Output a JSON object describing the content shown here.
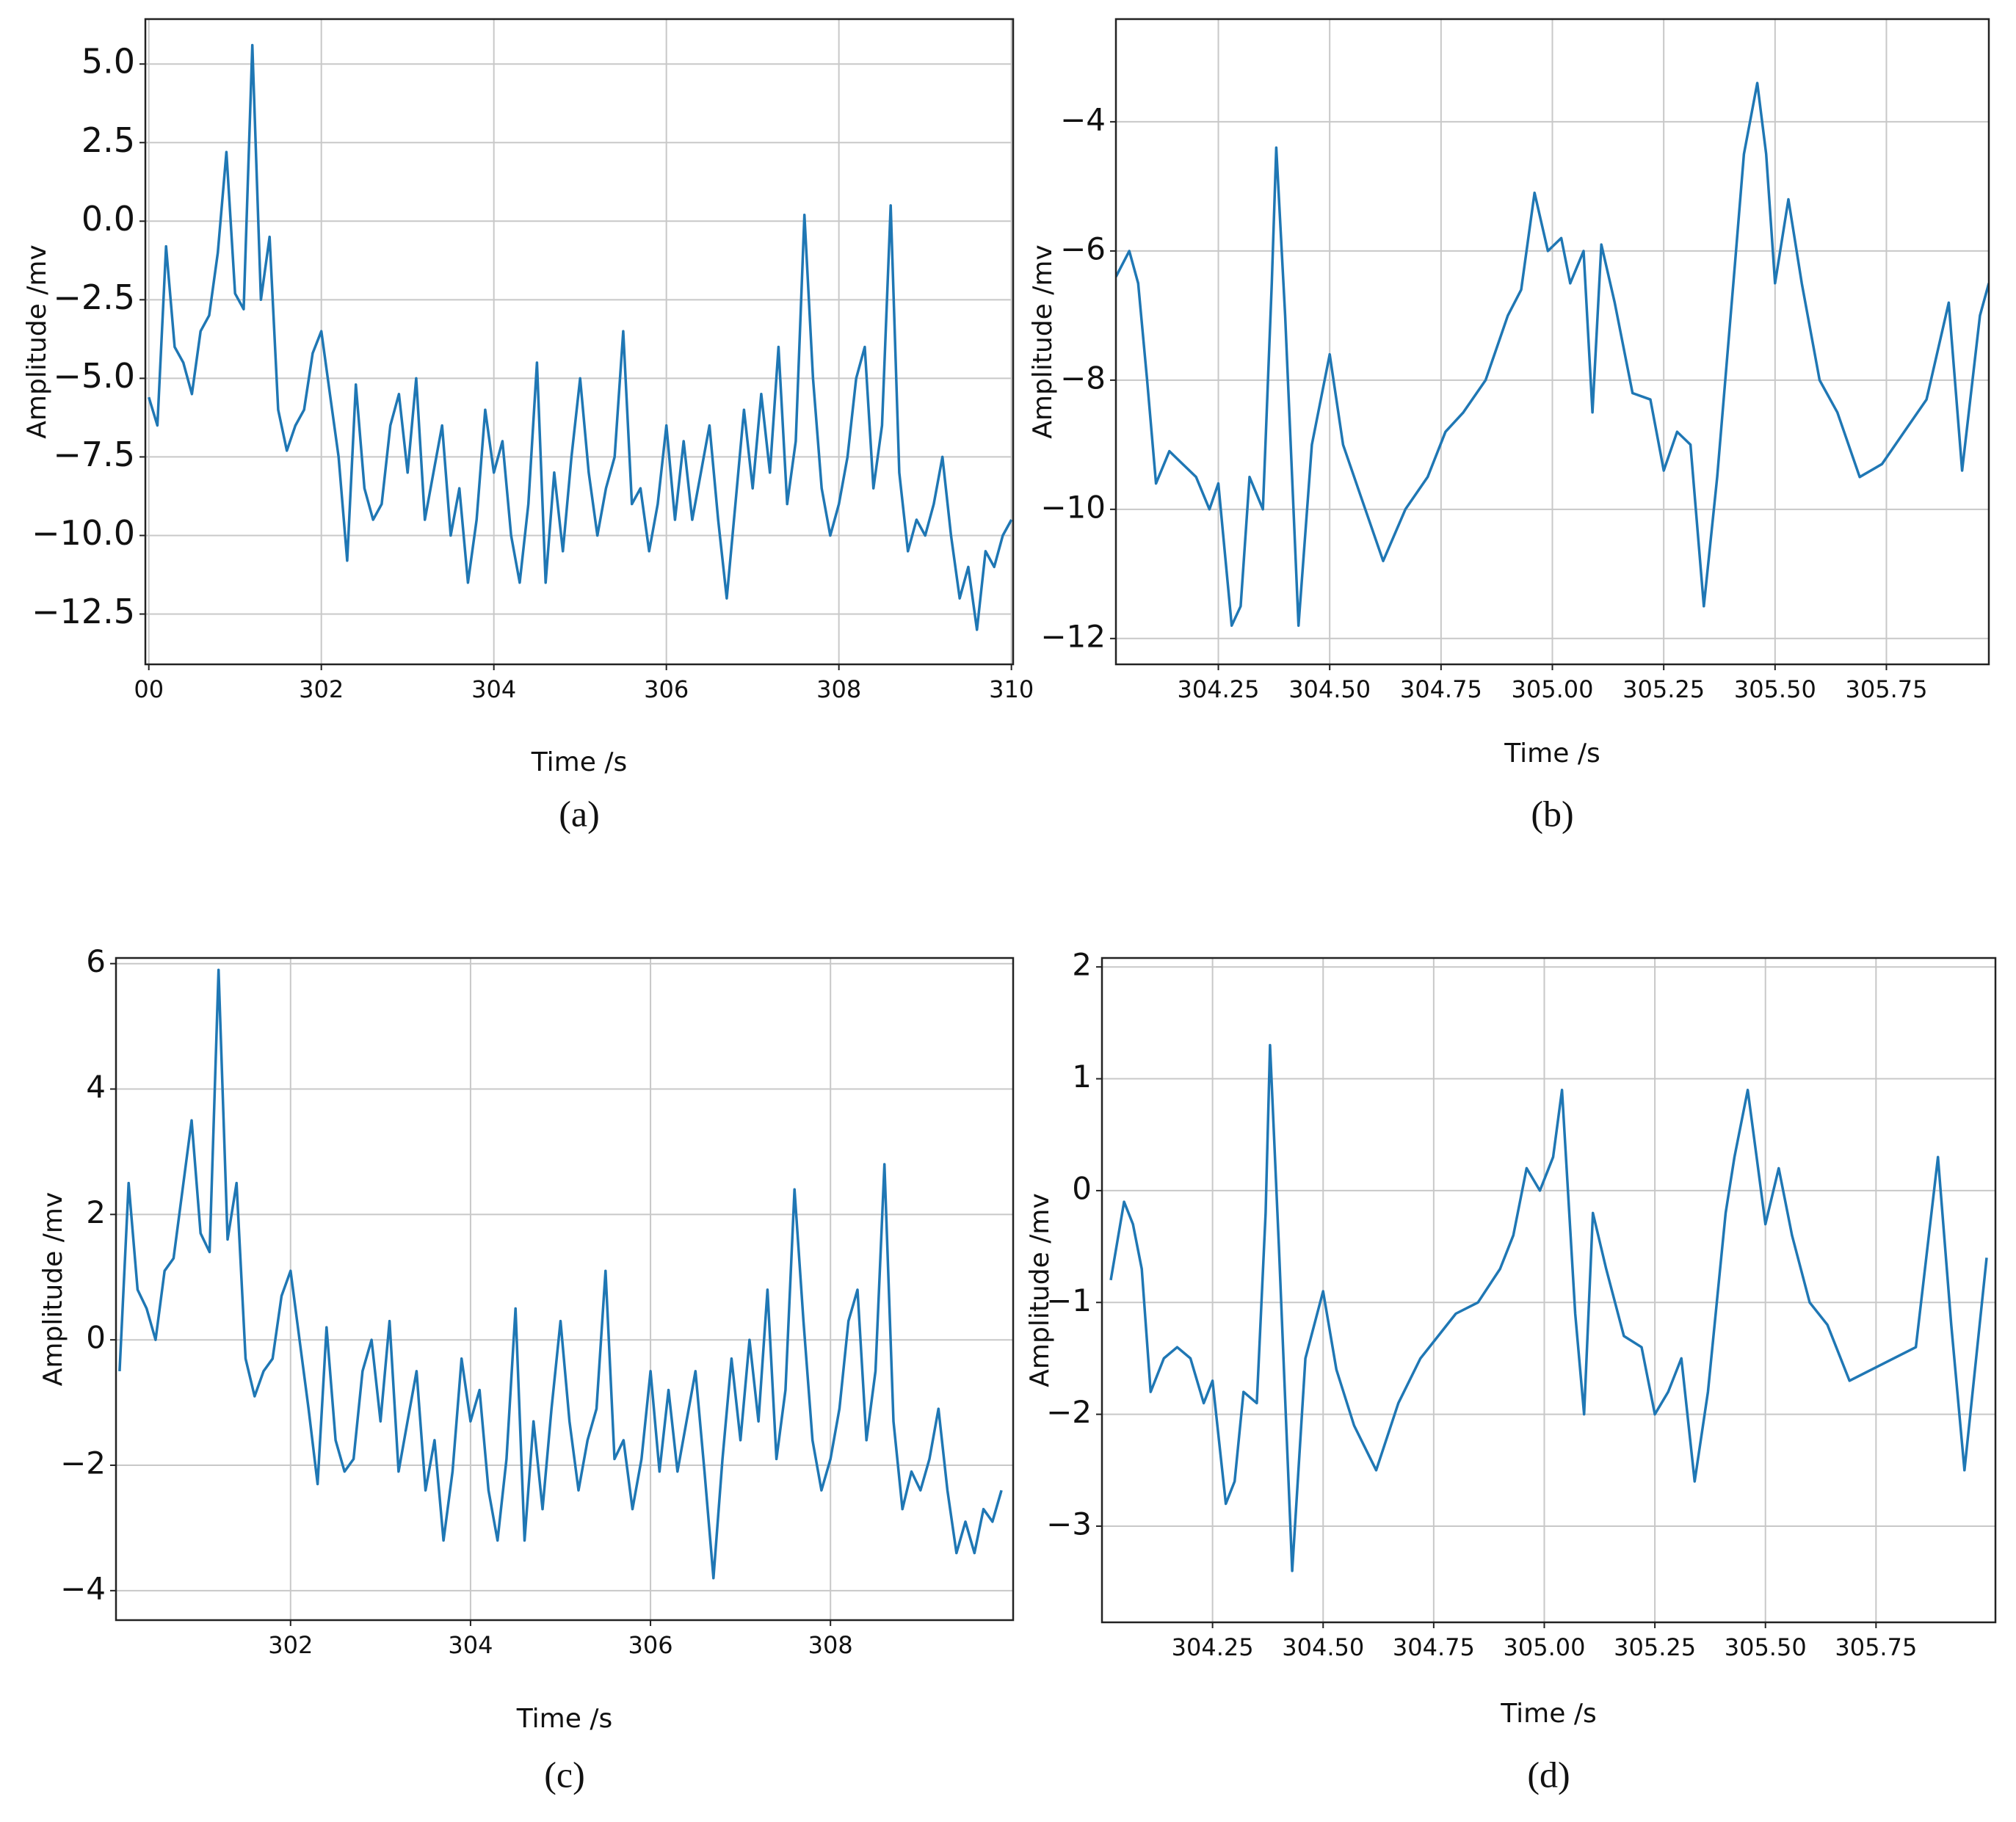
{
  "chart_data": [
    {
      "type": "line",
      "caption": "(a)",
      "xlabel": "Time /s",
      "ylabel": "Amplitude /mv",
      "color": "#1f77b4",
      "grid": true,
      "xlim": [
        299.96,
        310.02
      ],
      "ylim": [
        -14.1,
        6.43
      ],
      "xticks": [
        {
          "value": 300,
          "label": "00"
        },
        302,
        304,
        306,
        308,
        310
      ],
      "yticks": [
        {
          "value": 5,
          "label": "5.0"
        },
        {
          "value": 2.5,
          "label": "2.5"
        },
        {
          "value": 0,
          "label": "0.0"
        },
        {
          "value": -2.5,
          "label": "−2.5"
        },
        {
          "value": -5,
          "label": "−5.0"
        },
        {
          "value": -7.5,
          "label": "−7.5"
        },
        {
          "value": -10,
          "label": "−10.0"
        },
        {
          "value": -12.5,
          "label": "−12.5"
        }
      ],
      "x": [
        300.0,
        300.1,
        300.2,
        300.3,
        300.4,
        300.5,
        300.6,
        300.7,
        300.8,
        300.9,
        301.0,
        301.1,
        301.2,
        301.3,
        301.4,
        301.5,
        301.6,
        301.7,
        301.8,
        301.9,
        302.0,
        302.1,
        302.2,
        302.3,
        302.4,
        302.5,
        302.6,
        302.7,
        302.8,
        302.9,
        303.0,
        303.1,
        303.2,
        303.3,
        303.4,
        303.5,
        303.6,
        303.7,
        303.8,
        303.9,
        304.0,
        304.1,
        304.2,
        304.3,
        304.4,
        304.5,
        304.6,
        304.7,
        304.8,
        304.9,
        305.0,
        305.1,
        305.2,
        305.3,
        305.4,
        305.5,
        305.6,
        305.7,
        305.8,
        305.9,
        306.0,
        306.1,
        306.2,
        306.3,
        306.4,
        306.5,
        306.6,
        306.7,
        306.8,
        306.9,
        307.0,
        307.1,
        307.2,
        307.3,
        307.4,
        307.5,
        307.6,
        307.7,
        307.8,
        307.9,
        308.0,
        308.1,
        308.2,
        308.3,
        308.4,
        308.5,
        308.6,
        308.7,
        308.8,
        308.9,
        309.0,
        309.1,
        309.2,
        309.3,
        309.4,
        309.5,
        309.6,
        309.7,
        309.8,
        309.9,
        310.0
      ],
      "values": [
        -5.6,
        -6.5,
        -0.8,
        -4.0,
        -4.5,
        -5.5,
        -3.5,
        -3.0,
        -1.0,
        2.2,
        -2.3,
        -2.8,
        5.6,
        -2.5,
        -0.5,
        -6.0,
        -7.3,
        -6.5,
        -6.0,
        -4.2,
        -3.5,
        -5.5,
        -7.5,
        -10.8,
        -5.2,
        -8.5,
        -9.5,
        -9.0,
        -6.5,
        -5.5,
        -8.0,
        -5.0,
        -9.5,
        -8.0,
        -6.5,
        -10.0,
        -8.5,
        -11.5,
        -9.5,
        -6.0,
        -8.0,
        -7.0,
        -10.0,
        -11.5,
        -9.0,
        -4.5,
        -11.5,
        -8.0,
        -10.5,
        -7.5,
        -5.0,
        -8.0,
        -10.0,
        -8.5,
        -7.5,
        -3.5,
        -9.0,
        -8.5,
        -10.5,
        -9.0,
        -6.5,
        -9.5,
        -7.0,
        -9.5,
        -8.0,
        -6.5,
        -9.5,
        -12.0,
        -9.0,
        -6.0,
        -8.5,
        -5.5,
        -8.0,
        -4.0,
        -9.0,
        -7.0,
        0.2,
        -5.0,
        -8.5,
        -10.0,
        -9.0,
        -7.5,
        -5.0,
        -4.0,
        -8.5,
        -6.5,
        0.5,
        -8.0,
        -10.5,
        -9.5,
        -10.0,
        -9.0,
        -7.5,
        -10.0,
        -12.0,
        -11.0,
        -13.0,
        -10.5,
        -11.0,
        -10.0,
        -9.5
      ]
    },
    {
      "type": "line",
      "caption": "(b)",
      "xlabel": "Time /s",
      "ylabel": "Amplitude /mv",
      "color": "#1f77b4",
      "grid": true,
      "xlim": [
        304.02,
        305.98
      ],
      "ylim": [
        -12.4,
        -2.41
      ],
      "xticks": [
        304.25,
        {
          "value": 304.5,
          "label": "304.50"
        },
        304.75,
        {
          "value": 305,
          "label": "305.00"
        },
        305.25,
        {
          "value": 305.5,
          "label": "305.50"
        },
        305.75
      ],
      "yticks": [
        {
          "value": -4,
          "label": "−4"
        },
        {
          "value": -6,
          "label": "−6"
        },
        {
          "value": -8,
          "label": "−8"
        },
        {
          "value": -10,
          "label": "−10"
        },
        {
          "value": -12,
          "label": "−12"
        }
      ],
      "x": [
        304.02,
        304.05,
        304.07,
        304.09,
        304.11,
        304.14,
        304.17,
        304.2,
        304.23,
        304.25,
        304.28,
        304.3,
        304.32,
        304.35,
        304.37,
        304.38,
        304.4,
        304.43,
        304.46,
        304.5,
        304.53,
        304.57,
        304.62,
        304.67,
        304.72,
        304.76,
        304.8,
        304.85,
        304.9,
        304.93,
        304.96,
        304.99,
        305.02,
        305.04,
        305.07,
        305.09,
        305.11,
        305.14,
        305.18,
        305.22,
        305.25,
        305.28,
        305.31,
        305.34,
        305.37,
        305.41,
        305.43,
        305.46,
        305.48,
        305.5,
        305.53,
        305.56,
        305.6,
        305.64,
        305.69,
        305.74,
        305.79,
        305.84,
        305.89,
        305.92,
        305.96,
        305.98
      ],
      "values": [
        -6.4,
        -6.0,
        -6.5,
        -8.0,
        -9.6,
        -9.1,
        -9.3,
        -9.5,
        -10.0,
        -9.6,
        -11.8,
        -11.5,
        -9.5,
        -10.0,
        -6.5,
        -4.4,
        -7.0,
        -11.8,
        -9.0,
        -7.6,
        -9.0,
        -9.8,
        -10.8,
        -10.0,
        -9.5,
        -8.8,
        -8.5,
        -8.0,
        -7.0,
        -6.6,
        -5.1,
        -6.0,
        -5.8,
        -6.5,
        -6.0,
        -8.5,
        -5.9,
        -6.8,
        -8.2,
        -8.3,
        -9.4,
        -8.8,
        -9.0,
        -11.5,
        -9.5,
        -6.2,
        -4.5,
        -3.4,
        -4.5,
        -6.5,
        -5.2,
        -6.5,
        -8.0,
        -8.5,
        -9.5,
        -9.3,
        -8.8,
        -8.3,
        -6.8,
        -9.4,
        -7.0,
        -6.5
      ]
    },
    {
      "type": "line",
      "caption": "(c)",
      "xlabel": "Time /s",
      "ylabel": "Amplitude /mv",
      "color": "#1f77b4",
      "grid": true,
      "xlim": [
        300.06,
        310.03
      ],
      "ylim": [
        -4.47,
        6.09
      ],
      "xticks": [
        302,
        304,
        306,
        308
      ],
      "yticks": [
        6,
        4,
        2,
        0,
        {
          "value": -2,
          "label": "−2"
        },
        {
          "value": -4,
          "label": "−4"
        }
      ],
      "x": [
        300.1,
        300.2,
        300.3,
        300.4,
        300.5,
        300.6,
        300.7,
        300.8,
        300.9,
        301.0,
        301.1,
        301.2,
        301.3,
        301.4,
        301.5,
        301.6,
        301.7,
        301.8,
        301.9,
        302.0,
        302.1,
        302.2,
        302.3,
        302.4,
        302.5,
        302.6,
        302.7,
        302.8,
        302.9,
        303.0,
        303.1,
        303.2,
        303.3,
        303.4,
        303.5,
        303.6,
        303.7,
        303.8,
        303.9,
        304.0,
        304.1,
        304.2,
        304.3,
        304.4,
        304.5,
        304.6,
        304.7,
        304.8,
        304.9,
        305.0,
        305.1,
        305.2,
        305.3,
        305.4,
        305.5,
        305.6,
        305.7,
        305.8,
        305.9,
        306.0,
        306.1,
        306.2,
        306.3,
        306.4,
        306.5,
        306.6,
        306.7,
        306.8,
        306.9,
        307.0,
        307.1,
        307.2,
        307.3,
        307.4,
        307.5,
        307.6,
        307.7,
        307.8,
        307.9,
        308.0,
        308.1,
        308.2,
        308.3,
        308.4,
        308.5,
        308.6,
        308.7,
        308.8,
        308.9,
        309.0,
        309.1,
        309.2,
        309.3,
        309.4,
        309.5,
        309.6,
        309.7,
        309.8,
        309.9
      ],
      "values": [
        -0.5,
        2.5,
        0.8,
        0.5,
        0,
        1.1,
        1.3,
        2.4,
        3.5,
        1.7,
        1.4,
        5.9,
        1.6,
        2.5,
        -0.3,
        -0.9,
        -0.5,
        -0.3,
        0.7,
        1.1,
        0,
        -1.1,
        -2.3,
        0.2,
        -1.6,
        -2.1,
        -1.9,
        -0.5,
        0,
        -1.3,
        0.3,
        -2.1,
        -1.3,
        -0.5,
        -2.4,
        -1.6,
        -3.2,
        -2.1,
        -0.3,
        -1.3,
        -0.8,
        -2.4,
        -3.2,
        -1.9,
        0.5,
        -3.2,
        -1.3,
        -2.7,
        -1.1,
        0.3,
        -1.3,
        -2.4,
        -1.6,
        -1.1,
        1.1,
        -1.9,
        -1.6,
        -2.7,
        -1.9,
        -0.5,
        -2.1,
        -0.8,
        -2.1,
        -1.3,
        -0.5,
        -2.1,
        -3.8,
        -1.9,
        -0.3,
        -1.6,
        0,
        -1.3,
        0.8,
        -1.9,
        -0.8,
        2.4,
        0.3,
        -1.6,
        -2.4,
        -1.9,
        -1.1,
        0.3,
        0.8,
        -1.6,
        -0.5,
        2.8,
        -1.3,
        -2.7,
        -2.1,
        -2.4,
        -1.9,
        -1.1,
        -2.4,
        -3.4,
        -2.9,
        -3.4,
        -2.7,
        -2.9,
        -2.4
      ]
    },
    {
      "type": "line",
      "caption": "(d)",
      "xlabel": "Time /s",
      "ylabel": "Amplitude /mv",
      "color": "#1f77b4",
      "grid": true,
      "xlim": [
        304.0,
        306.02
      ],
      "ylim": [
        -3.86,
        2.08
      ],
      "xticks": [
        304.25,
        {
          "value": 304.5,
          "label": "304.50"
        },
        304.75,
        {
          "value": 305,
          "label": "305.00"
        },
        305.25,
        {
          "value": 305.5,
          "label": "305.50"
        },
        305.75
      ],
      "yticks": [
        2,
        1,
        0,
        {
          "value": -1,
          "label": "−1"
        },
        {
          "value": -2,
          "label": "−2"
        },
        {
          "value": -3,
          "label": "−3"
        }
      ],
      "x": [
        304.02,
        304.05,
        304.07,
        304.09,
        304.11,
        304.14,
        304.17,
        304.2,
        304.23,
        304.25,
        304.28,
        304.3,
        304.32,
        304.35,
        304.37,
        304.38,
        304.4,
        304.43,
        304.46,
        304.5,
        304.53,
        304.57,
        304.62,
        304.67,
        304.72,
        304.76,
        304.8,
        304.85,
        304.9,
        304.93,
        304.96,
        304.99,
        305.02,
        305.04,
        305.07,
        305.09,
        305.11,
        305.14,
        305.18,
        305.22,
        305.25,
        305.28,
        305.31,
        305.34,
        305.37,
        305.41,
        305.43,
        305.46,
        305.48,
        305.5,
        305.53,
        305.56,
        305.6,
        305.64,
        305.69,
        305.74,
        305.79,
        305.84,
        305.89,
        305.92,
        305.95,
        306.0
      ],
      "values": [
        -0.8,
        -0.1,
        -0.3,
        -0.7,
        -1.8,
        -1.5,
        -1.4,
        -1.5,
        -1.9,
        -1.7,
        -2.8,
        -2.6,
        -1.8,
        -1.9,
        -0.2,
        1.3,
        -0.5,
        -3.4,
        -1.5,
        -0.9,
        -1.6,
        -2.1,
        -2.5,
        -1.9,
        -1.5,
        -1.3,
        -1.1,
        -1.0,
        -0.7,
        -0.4,
        0.2,
        0.0,
        0.3,
        0.9,
        -1.1,
        -2.0,
        -0.2,
        -0.7,
        -1.3,
        -1.4,
        -2.0,
        -1.8,
        -1.5,
        -2.6,
        -1.8,
        -0.2,
        0.3,
        0.9,
        0.3,
        -0.3,
        0.2,
        -0.4,
        -1.0,
        -1.2,
        -1.7,
        -1.6,
        -1.5,
        -1.4,
        0.3,
        -1.2,
        -2.5,
        -0.6
      ]
    }
  ]
}
